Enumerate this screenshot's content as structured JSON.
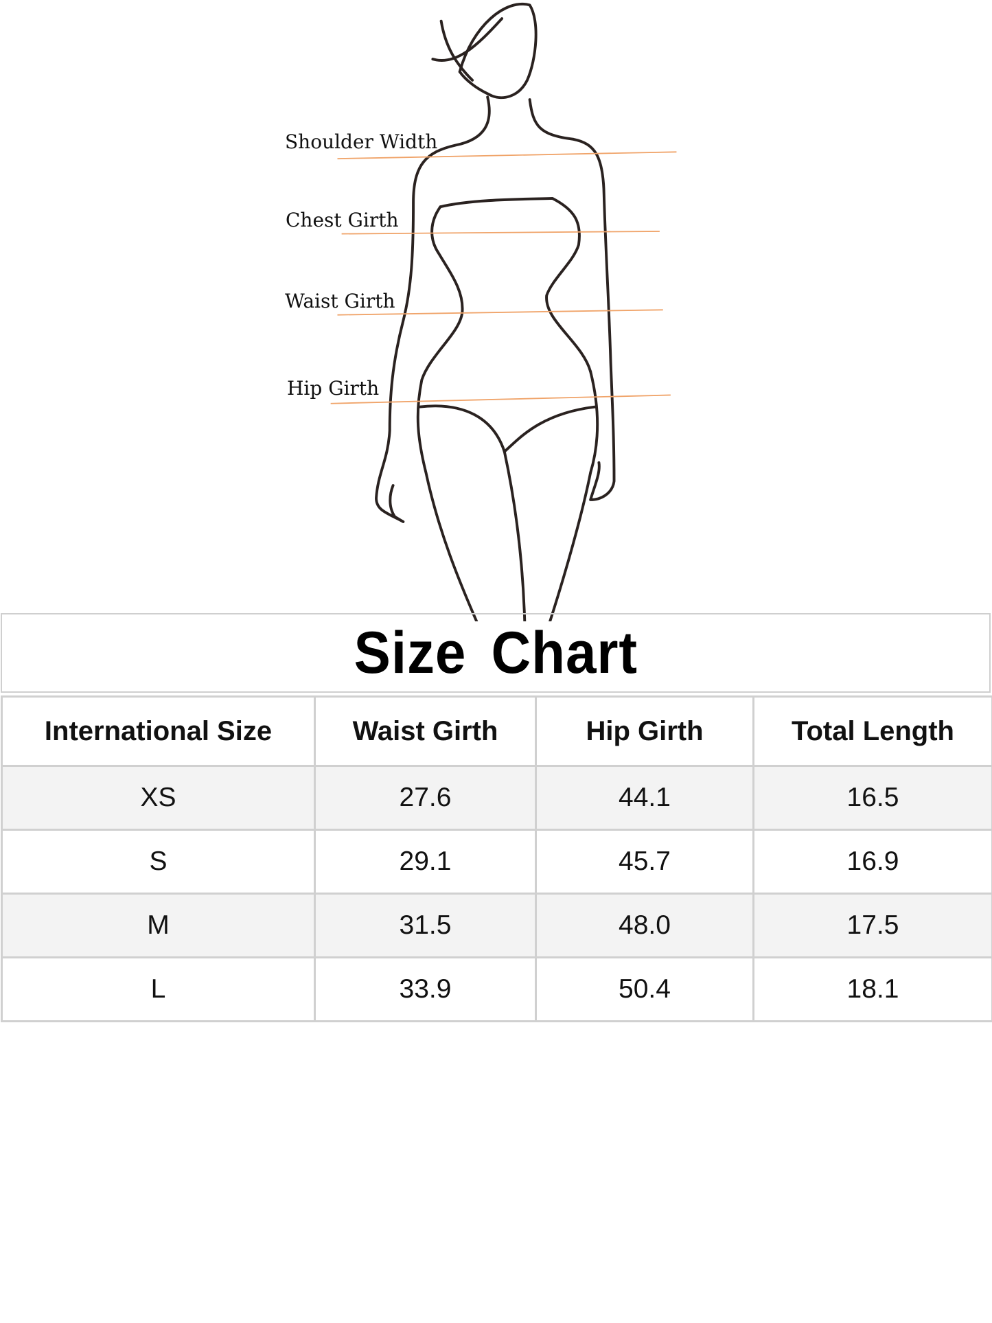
{
  "measure_labels": [
    "Shoulder Width",
    "Chest Girth",
    "Waist Girth",
    "Hip Girth"
  ],
  "line_color": "#f0a46a",
  "title": "Size  Chart",
  "table": {
    "headers": [
      "International Size",
      "Waist Girth",
      "Hip Girth",
      "Total Length"
    ],
    "rows": [
      [
        "XS",
        "27.6",
        "44.1",
        "16.5"
      ],
      [
        "S",
        "29.1",
        "45.7",
        "16.9"
      ],
      [
        "M",
        "31.5",
        "48.0",
        "17.5"
      ],
      [
        "L",
        "33.9",
        "50.4",
        "18.1"
      ]
    ]
  }
}
